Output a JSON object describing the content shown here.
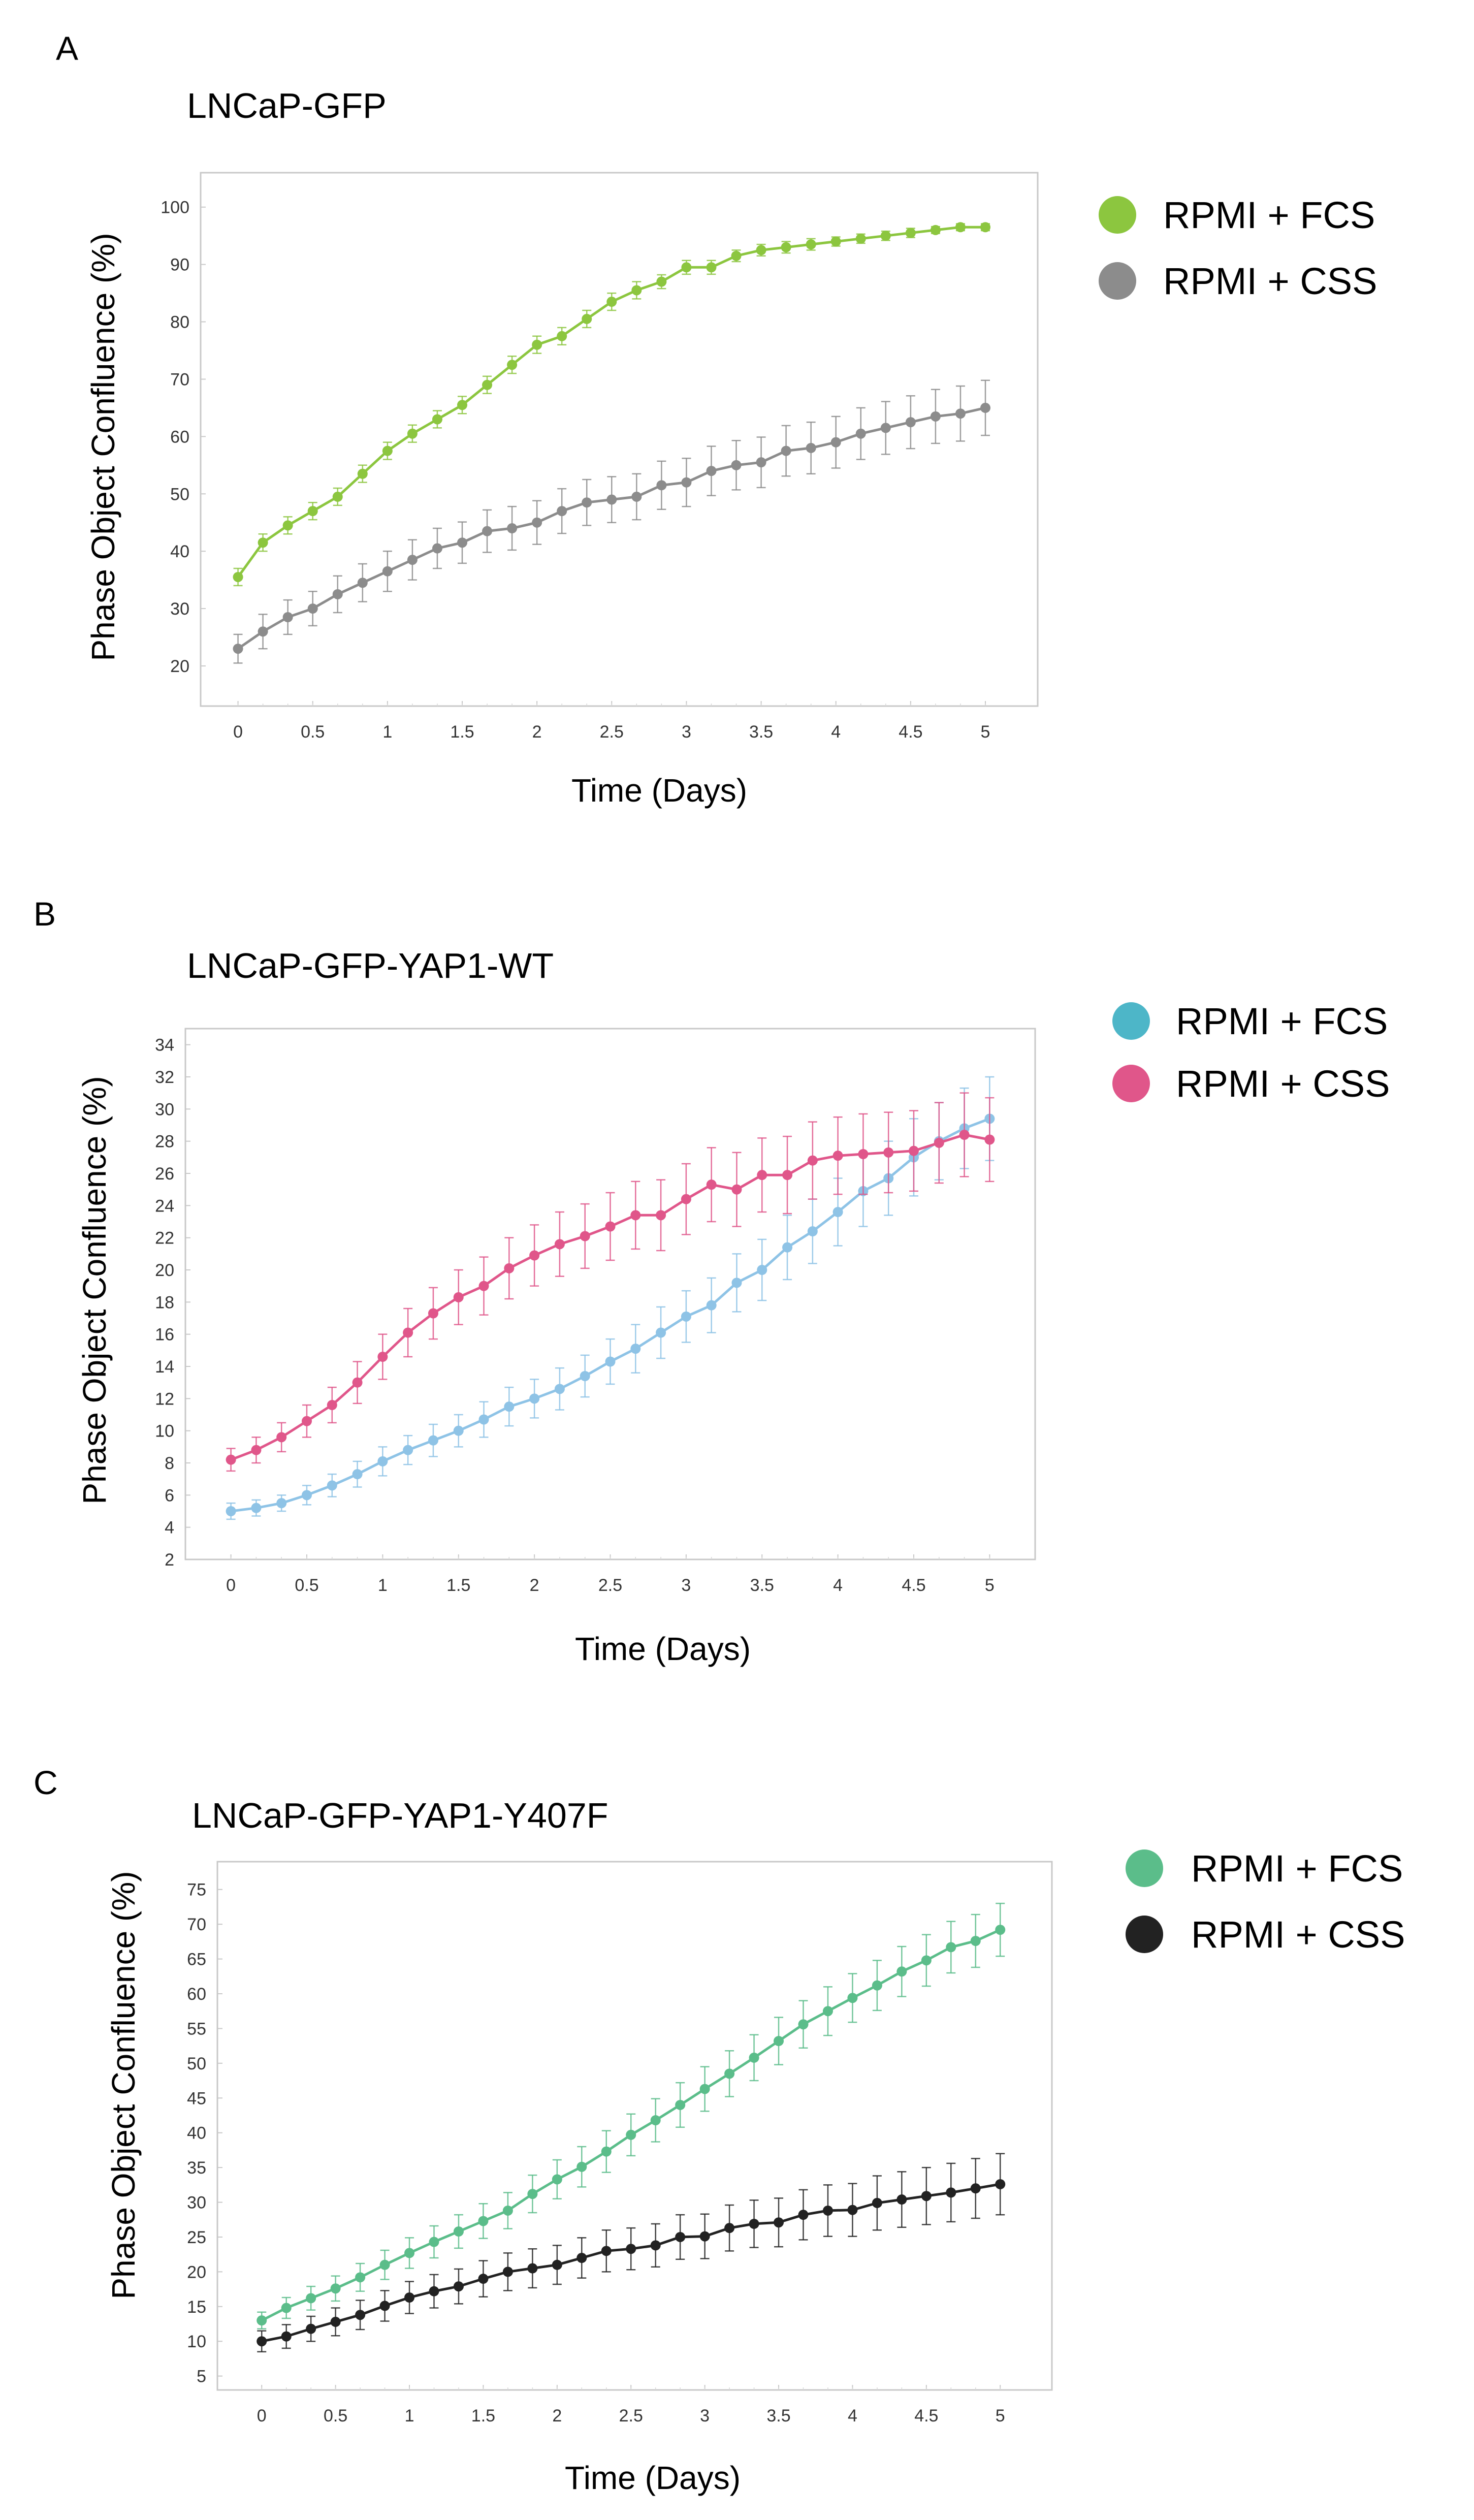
{
  "chart_data": [
    {
      "type": "line",
      "panel_letter": "A",
      "title": "LNCaP-GFP",
      "xlabel": "Time (Days)",
      "ylabel": "Phase Object Confluence (%)",
      "xlim": [
        -0.25,
        5.35
      ],
      "ylim": [
        13,
        106
      ],
      "x_ticks": [
        0,
        0.5,
        1,
        1.5,
        2,
        2.5,
        3,
        3.5,
        4,
        4.5,
        5
      ],
      "x_tick_labels": [
        "0",
        "0.5",
        "1",
        "1.5",
        "2",
        "2.5",
        "3",
        "3.5",
        "4",
        "4.5",
        "5"
      ],
      "y_ticks": [
        20,
        30,
        40,
        50,
        60,
        70,
        80,
        90,
        100
      ],
      "y_tick_labels": [
        "20",
        "30",
        "40",
        "50",
        "60",
        "70",
        "80",
        "90",
        "100"
      ],
      "grid": false,
      "legend_position": "right",
      "series": [
        {
          "name": "RPMI + FCS",
          "color": "#8cc63f",
          "values": [
            35.5,
            41.5,
            44.5,
            47,
            49.5,
            53.5,
            57.5,
            60.5,
            63,
            65.5,
            69,
            72.5,
            76,
            77.5,
            80.5,
            83.5,
            85.5,
            87,
            89.5,
            89.5,
            91.5,
            92.5,
            93,
            93.5,
            94,
            94.5,
            95,
            95.5,
            96,
            96.5,
            96.5
          ],
          "errors": [
            1.5,
            1.5,
            1.5,
            1.5,
            1.5,
            1.5,
            1.5,
            1.5,
            1.5,
            1.5,
            1.5,
            1.5,
            1.5,
            1.5,
            1.5,
            1.5,
            1.5,
            1.2,
            1.2,
            1.2,
            1,
            1,
            1,
            1,
            0.8,
            0.8,
            0.8,
            0.8,
            0.6,
            0.6,
            0.6
          ]
        },
        {
          "name": "RPMI + CSS",
          "color": "#8c8c8c",
          "values": [
            23,
            26,
            28.5,
            30,
            32.5,
            34.5,
            36.5,
            38.5,
            40.5,
            41.5,
            43.5,
            44,
            45,
            47,
            48.5,
            49,
            49.5,
            51.5,
            52,
            54,
            55,
            55.5,
            57.5,
            58,
            59,
            60.5,
            61.5,
            62.5,
            63.5,
            64,
            65
          ],
          "errors": [
            2.5,
            3,
            3,
            3,
            3.2,
            3.3,
            3.5,
            3.5,
            3.5,
            3.6,
            3.7,
            3.8,
            3.8,
            3.9,
            4,
            4,
            4,
            4.2,
            4.2,
            4.3,
            4.3,
            4.4,
            4.4,
            4.5,
            4.5,
            4.5,
            4.6,
            4.6,
            4.7,
            4.8,
            4.8
          ]
        }
      ]
    },
    {
      "type": "line",
      "panel_letter": "B",
      "title": "LNCaP-GFP-YAP1-WT",
      "xlabel": "Time (Days)",
      "ylabel": "Phase Object Confluence (%)",
      "xlim": [
        -0.3,
        5.3
      ],
      "ylim": [
        2,
        35
      ],
      "x_ticks": [
        0,
        0.5,
        1,
        1.5,
        2,
        2.5,
        3,
        3.5,
        4,
        4.5,
        5
      ],
      "x_tick_labels": [
        "0",
        "0.5",
        "1",
        "1.5",
        "2",
        "2.5",
        "3",
        "3.5",
        "4",
        "4.5",
        "5"
      ],
      "y_ticks": [
        2,
        4,
        6,
        8,
        10,
        12,
        14,
        16,
        18,
        20,
        22,
        24,
        26,
        28,
        30,
        32,
        34
      ],
      "y_tick_labels": [
        "2",
        "4",
        "6",
        "8",
        "10",
        "12",
        "14",
        "16",
        "18",
        "20",
        "22",
        "24",
        "26",
        "28",
        "30",
        "32",
        "34"
      ],
      "grid": false,
      "legend_position": "right",
      "series": [
        {
          "name": "RPMI + FCS",
          "color": "#4db6c8",
          "line_color": "#8ec3e6",
          "values": [
            5,
            5.2,
            5.5,
            6,
            6.6,
            7.3,
            8.1,
            8.8,
            9.4,
            10,
            10.7,
            11.5,
            12,
            12.6,
            13.4,
            14.3,
            15.1,
            16.1,
            17.1,
            17.8,
            19.2,
            20,
            21.4,
            22.4,
            23.6,
            24.9,
            25.7,
            27,
            28,
            28.8,
            29.4
          ],
          "errors": [
            0.5,
            0.5,
            0.5,
            0.6,
            0.7,
            0.8,
            0.9,
            0.9,
            1,
            1,
            1.1,
            1.2,
            1.2,
            1.3,
            1.3,
            1.4,
            1.5,
            1.6,
            1.6,
            1.7,
            1.8,
            1.9,
            2,
            2,
            2.1,
            2.2,
            2.3,
            2.4,
            2.4,
            2.5,
            2.6
          ]
        },
        {
          "name": "RPMI + CSS",
          "color": "#e0568a",
          "values": [
            8.2,
            8.8,
            9.6,
            10.6,
            11.6,
            13,
            14.6,
            16.1,
            17.3,
            18.3,
            19,
            20.1,
            20.9,
            21.6,
            22.1,
            22.7,
            23.4,
            23.4,
            24.4,
            25.3,
            25,
            25.9,
            25.9,
            26.8,
            27.1,
            27.2,
            27.3,
            27.4,
            27.9,
            28.4,
            28.1
          ],
          "errors": [
            0.7,
            0.8,
            0.9,
            1,
            1.1,
            1.3,
            1.4,
            1.5,
            1.6,
            1.7,
            1.8,
            1.9,
            1.9,
            2,
            2,
            2.1,
            2.1,
            2.2,
            2.2,
            2.3,
            2.3,
            2.3,
            2.4,
            2.4,
            2.4,
            2.5,
            2.5,
            2.5,
            2.5,
            2.6,
            2.6
          ]
        }
      ]
    },
    {
      "type": "line",
      "panel_letter": "C",
      "title": "LNCaP-GFP-YAP1-Y407F",
      "xlabel": "Time (Days)",
      "ylabel": "Phase Object Confluence (%)",
      "xlim": [
        -0.3,
        5.35
      ],
      "ylim": [
        3,
        79
      ],
      "x_ticks": [
        0,
        0.5,
        1,
        1.5,
        2,
        2.5,
        3,
        3.5,
        4,
        4.5,
        5
      ],
      "x_tick_labels": [
        "0",
        "0.5",
        "1",
        "1.5",
        "2",
        "2.5",
        "3",
        "3.5",
        "4",
        "4.5",
        "5"
      ],
      "y_ticks": [
        5,
        10,
        15,
        20,
        25,
        30,
        35,
        40,
        45,
        50,
        55,
        60,
        65,
        70,
        75
      ],
      "y_tick_labels": [
        "5",
        "10",
        "15",
        "20",
        "25",
        "30",
        "35",
        "40",
        "45",
        "50",
        "55",
        "60",
        "65",
        "70",
        "75"
      ],
      "grid": false,
      "legend_position": "right",
      "series": [
        {
          "name": "RPMI + FCS",
          "color": "#5bbd8a",
          "values": [
            13,
            14.8,
            16.2,
            17.6,
            19.2,
            21,
            22.7,
            24.3,
            25.8,
            27.3,
            28.8,
            31.2,
            33.3,
            35.1,
            37.3,
            39.7,
            41.8,
            44,
            46.3,
            48.5,
            50.8,
            53.2,
            55.6,
            57.5,
            59.4,
            61.2,
            63.2,
            64.8,
            66.7,
            67.6,
            69.2
          ],
          "errors": [
            1.2,
            1.5,
            1.7,
            1.8,
            2,
            2.1,
            2.2,
            2.3,
            2.4,
            2.5,
            2.6,
            2.7,
            2.8,
            2.9,
            3,
            3,
            3.1,
            3.2,
            3.2,
            3.3,
            3.3,
            3.4,
            3.4,
            3.5,
            3.5,
            3.6,
            3.6,
            3.7,
            3.7,
            3.8,
            3.8
          ]
        },
        {
          "name": "RPMI + CSS",
          "color": "#222222",
          "values": [
            10,
            10.7,
            11.8,
            12.8,
            13.8,
            15.1,
            16.3,
            17.2,
            17.9,
            19,
            20,
            20.5,
            21,
            22,
            23,
            23.3,
            23.8,
            25,
            25.1,
            26.3,
            26.9,
            27.1,
            28.2,
            28.8,
            28.9,
            29.9,
            30.4,
            30.9,
            31.4,
            32,
            32.6
          ],
          "errors": [
            1.5,
            1.7,
            1.8,
            2,
            2.1,
            2.2,
            2.3,
            2.4,
            2.5,
            2.6,
            2.7,
            2.8,
            2.8,
            2.9,
            3,
            3,
            3.1,
            3.2,
            3.2,
            3.3,
            3.4,
            3.5,
            3.6,
            3.7,
            3.8,
            3.9,
            4,
            4.1,
            4.2,
            4.3,
            4.4
          ]
        }
      ]
    }
  ]
}
